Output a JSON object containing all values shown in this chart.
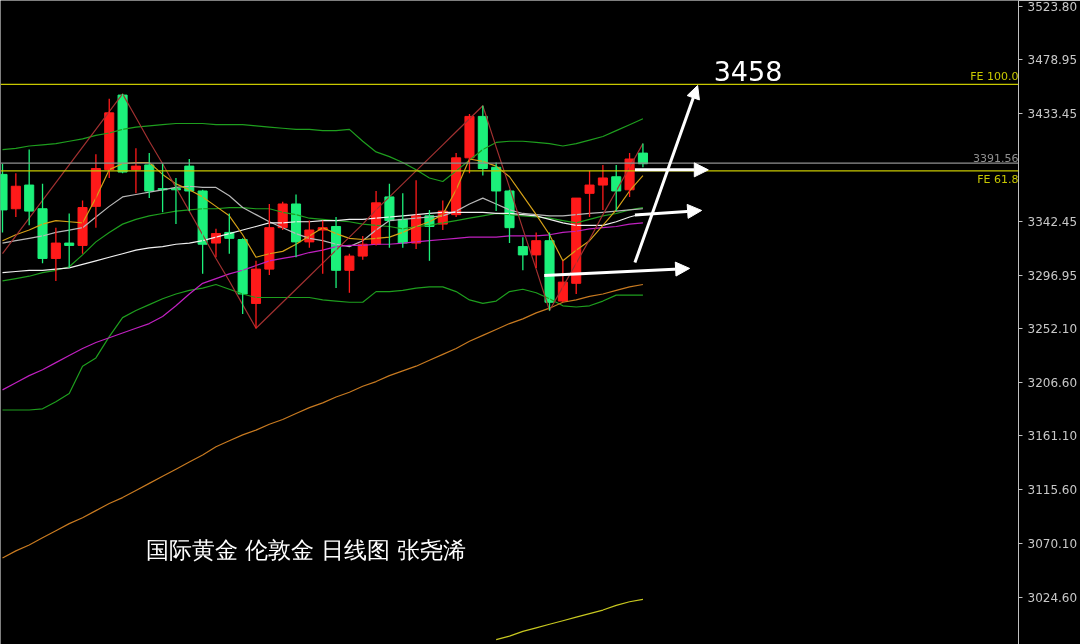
{
  "chart_data": {
    "type": "candlestick",
    "categories": [
      null,
      null,
      null,
      null,
      null,
      null,
      null,
      null,
      null,
      null,
      null,
      null,
      null,
      null,
      null,
      null,
      null,
      null,
      null,
      null,
      null,
      null,
      null,
      null,
      null,
      null,
      null,
      null,
      null,
      null,
      null,
      null,
      null,
      null,
      null,
      null,
      null,
      null,
      null,
      null,
      null,
      null,
      null,
      null,
      null,
      null,
      null,
      null,
      null,
      null,
      null,
      null,
      null,
      null,
      null,
      null,
      null,
      null,
      null,
      null,
      null,
      null,
      null,
      null,
      null,
      null,
      null,
      null,
      null,
      null,
      null,
      null,
      null,
      null,
      null,
      null,
      null
    ],
    "ohlc": [
      [
        3382,
        3391,
        3333,
        3352
      ],
      [
        3353,
        3383,
        3346,
        3372
      ],
      [
        3373,
        3403,
        3339,
        3351
      ],
      [
        3353,
        3374,
        3307,
        3311
      ],
      [
        3311,
        3337,
        3292,
        3324
      ],
      [
        3324,
        3349,
        3303,
        3322
      ],
      [
        3322,
        3360,
        3315,
        3354
      ],
      [
        3355,
        3399,
        3337,
        3387
      ],
      [
        3386,
        3446,
        3379,
        3434
      ],
      [
        3449,
        3450,
        3383,
        3384
      ],
      [
        3386,
        3404,
        3366,
        3389
      ],
      [
        3390,
        3400,
        3362,
        3368
      ],
      [
        3370,
        3391,
        3350,
        3369
      ],
      [
        3370,
        3379,
        3340,
        3369
      ],
      [
        3389,
        3395,
        3351,
        3368
      ],
      [
        3368,
        3369,
        3298,
        3323
      ],
      [
        3324,
        3336,
        3312,
        3332
      ],
      [
        3333,
        3349,
        3315,
        3328
      ],
      [
        3327,
        3328,
        3264,
        3281
      ],
      [
        3273,
        3309,
        3252,
        3302
      ],
      [
        3302,
        3357,
        3297,
        3337
      ],
      [
        3337,
        3359,
        3335,
        3357
      ],
      [
        3357,
        3365,
        3312,
        3325
      ],
      [
        3325,
        3343,
        3320,
        3335
      ],
      [
        3335,
        3343,
        3298,
        3337
      ],
      [
        3338,
        3346,
        3286,
        3301
      ],
      [
        3301,
        3315,
        3282,
        3313
      ],
      [
        3313,
        3330,
        3310,
        3323
      ],
      [
        3323,
        3368,
        3322,
        3358
      ],
      [
        3363,
        3374,
        3320,
        3343
      ],
      [
        3344,
        3366,
        3320,
        3324
      ],
      [
        3324,
        3377,
        3319,
        3347
      ],
      [
        3347,
        3352,
        3309,
        3338
      ],
      [
        3340,
        3360,
        3335,
        3351
      ],
      [
        3348,
        3400,
        3346,
        3396
      ],
      [
        3396,
        3433,
        3383,
        3431
      ],
      [
        3431,
        3440,
        3381,
        3387
      ],
      [
        3388,
        3392,
        3351,
        3368
      ],
      [
        3368,
        3369,
        3324,
        3337
      ],
      [
        3321,
        3329,
        3301,
        3314
      ],
      [
        3314,
        3333,
        3303,
        3326
      ],
      [
        3326,
        3333,
        3267,
        3274
      ],
      [
        3275,
        3309,
        3274,
        3291
      ],
      [
        3290,
        3362,
        3281,
        3362
      ],
      [
        3366,
        3385,
        3346,
        3373
      ],
      [
        3373,
        3390,
        3352,
        3379
      ],
      [
        3380,
        3390,
        3351,
        3368
      ],
      [
        3369,
        3400,
        3363,
        3395
      ],
      [
        3400,
        3408,
        3388,
        3391
      ],
      null,
      null,
      null,
      null,
      null,
      null,
      null,
      null,
      null,
      null,
      null,
      null,
      null,
      null,
      null,
      null,
      null,
      null,
      null,
      null,
      null,
      null,
      null,
      null,
      null,
      null,
      null,
      null
    ],
    "colors": [
      "#1cf07a",
      "#ff1a1a",
      "#1cf07a",
      "#1cf07a",
      "#ff1a1a",
      "#1cf07a",
      "#ff1a1a",
      "#ff1a1a",
      "#ff1a1a",
      "#1cf07a",
      "#ff1a1a",
      "#1cf07a",
      "#1cf07a",
      "#1cf07a",
      "#1cf07a",
      "#1cf07a",
      "#ff1a1a",
      "#1cf07a",
      "#1cf07a",
      "#ff1a1a",
      "#ff1a1a",
      "#ff1a1a",
      "#1cf07a",
      "#ff1a1a",
      "#ff1a1a",
      "#1cf07a",
      "#ff1a1a",
      "#ff1a1a",
      "#ff1a1a",
      "#1cf07a",
      "#1cf07a",
      "#ff1a1a",
      "#1cf07a",
      "#ff1a1a",
      "#ff1a1a",
      "#ff1a1a",
      "#1cf07a",
      "#1cf07a",
      "#1cf07a",
      "#1cf07a",
      "#ff1a1a",
      "#1cf07a",
      "#ff1a1a",
      "#ff1a1a",
      "#ff1a1a",
      "#ff1a1a",
      "#1cf07a",
      "#ff1a1a",
      "#1cf07a",
      null,
      null,
      null,
      null,
      null,
      null,
      null,
      null,
      null,
      null,
      null,
      null,
      null,
      null,
      null,
      null,
      null,
      null,
      null,
      null,
      null,
      null,
      null,
      null,
      null,
      null,
      null,
      null
    ],
    "series": [
      {
        "type": "line",
        "color": "#1e9e1e",
        "values": [
          3403,
          3404,
          3406,
          3407,
          3408,
          3410,
          3412,
          3415,
          3417,
          3420,
          3422,
          3423,
          3424,
          3425,
          3425,
          3425,
          3424,
          3424,
          3424,
          3423,
          3422,
          3421,
          3420,
          3420,
          3419,
          3419,
          3420,
          3410,
          3401,
          3397,
          3392,
          3386,
          3379,
          3376,
          3385,
          3394,
          3403,
          3409,
          3410,
          3410,
          3409,
          3408,
          3406,
          3408,
          3411,
          3414,
          3419,
          3424,
          3429,
          null,
          null,
          null,
          null,
          null,
          null,
          null,
          null,
          null,
          null,
          null,
          null,
          null,
          null,
          null,
          null,
          null,
          null,
          null,
          null,
          null,
          null,
          null,
          null,
          null,
          null,
          null,
          null
        ]
      },
      {
        "type": "line",
        "color": "#1e9e1e",
        "values": [
          3292,
          3294,
          3296,
          3299,
          3301,
          3304,
          3314,
          3325,
          3333,
          3340,
          3344,
          3347,
          3349,
          3351,
          3352,
          3353,
          3353,
          3354,
          3354,
          3353,
          3353,
          3350,
          3348,
          3345,
          3344,
          3343,
          3342,
          3340,
          3339,
          3338,
          3336,
          3338,
          3339,
          3341,
          3343,
          3345,
          3347,
          3349,
          3348,
          3347,
          3346,
          3345,
          3343,
          3341,
          3344,
          3347,
          3349,
          3352,
          3354,
          null,
          null,
          null,
          null,
          null,
          null,
          null,
          null,
          null,
          null,
          null,
          null,
          null,
          null,
          null,
          null,
          null,
          null,
          null,
          null,
          null,
          null,
          null,
          null,
          null,
          null,
          null,
          null
        ]
      },
      {
        "type": "line",
        "color": "#1e9e1e",
        "values": [
          3183,
          3183,
          3183,
          3184,
          3190,
          3197,
          3220,
          3227,
          3245,
          3261,
          3267,
          3272,
          3277,
          3281,
          3284,
          3286,
          3289,
          3285,
          3281,
          3278,
          3278,
          3278,
          3278,
          3278,
          3276,
          3275,
          3274,
          3274,
          3283,
          3283,
          3284,
          3286,
          3287,
          3287,
          3283,
          3276,
          3273,
          3275,
          3283,
          3285,
          3282,
          3277,
          3271,
          3270,
          3271,
          3275,
          3280,
          3280,
          3280,
          null,
          null,
          null,
          null,
          null,
          null,
          null,
          null,
          null,
          null,
          null,
          null,
          null,
          null,
          null,
          null,
          null,
          null,
          null,
          null,
          null,
          null,
          null,
          null,
          null,
          null,
          null,
          null
        ]
      },
      {
        "type": "line",
        "color": "#b8b8b8",
        "values": [
          3324,
          3326,
          3328,
          3330,
          3333,
          3335,
          3337,
          3346,
          3355,
          3363,
          3365,
          3367,
          3369,
          3371,
          3372,
          3371,
          3371,
          3364,
          3354,
          3348,
          3342,
          3337,
          3332,
          3328,
          3326,
          3323,
          3321,
          3326,
          3335,
          3343,
          3344,
          3345,
          3346,
          3347,
          3351,
          3357,
          3362,
          3357,
          3352,
          3349,
          3348,
          3347,
          3347,
          3348,
          3349,
          3350,
          3351,
          3352,
          3353,
          null,
          null,
          null,
          null,
          null,
          null,
          null,
          null,
          null,
          null,
          null,
          null,
          null,
          null,
          null,
          null,
          null,
          null,
          null,
          null,
          null,
          null,
          null,
          null,
          null,
          null,
          null,
          null
        ]
      },
      {
        "type": "line",
        "color": "#f0f0f0",
        "values": [
          3299,
          3300,
          3301,
          3301,
          3302,
          3303,
          3306,
          3309,
          3312,
          3315,
          3318,
          3320,
          3321,
          3323,
          3324,
          3326,
          3329,
          3332,
          3335,
          3338,
          3341,
          3341,
          3342,
          3342,
          3343,
          3343,
          3344,
          3344,
          3345,
          3346,
          3347,
          3348,
          3349,
          3350,
          3350,
          3350,
          3350,
          3349,
          3349,
          3348,
          3347,
          3344,
          3341,
          3339,
          3339,
          3339,
          3342,
          3346,
          3349,
          null,
          null,
          null,
          null,
          null,
          null,
          null,
          null,
          null,
          null,
          null,
          null,
          null,
          null,
          null,
          null,
          null,
          null,
          null,
          null,
          null,
          null,
          null,
          null,
          null,
          null,
          null,
          null
        ]
      },
      {
        "type": "line",
        "color": "#c020c0",
        "values": [
          3200,
          3206,
          3212,
          3217,
          3223,
          3229,
          3235,
          3240,
          3244,
          3248,
          3252,
          3256,
          3262,
          3271,
          3281,
          3290,
          3294,
          3298,
          3301,
          3305,
          3309,
          3311,
          3313,
          3316,
          3318,
          3321,
          3322,
          3322,
          3323,
          3323,
          3324,
          3325,
          3326,
          3327,
          3328,
          3329,
          3329,
          3329,
          3330,
          3330,
          3330,
          3331,
          3333,
          3334,
          3336,
          3337,
          3338,
          3340,
          3341,
          null,
          null,
          null,
          null,
          null,
          null,
          null,
          null,
          null,
          null,
          null,
          null,
          null,
          null,
          null,
          null,
          null,
          null,
          null,
          null,
          null,
          null,
          null,
          null,
          null,
          null,
          null,
          null
        ]
      },
      {
        "type": "line",
        "color": "#d4a017",
        "values": [
          3326,
          3331,
          3335,
          3340,
          3343,
          3342,
          3341,
          3362,
          3386,
          3391,
          3392,
          3392,
          3382,
          3374,
          3369,
          3363,
          3355,
          3347,
          3331,
          3312,
          3315,
          3317,
          3323,
          3330,
          3337,
          3332,
          3328,
          3327,
          3328,
          3329,
          3333,
          3338,
          3342,
          3348,
          3369,
          3395,
          3393,
          3389,
          3380,
          3364,
          3348,
          3331,
          3309,
          3318,
          3326,
          3339,
          3352,
          3368,
          3381,
          null,
          null,
          null,
          null,
          null,
          null,
          null,
          null,
          null,
          null,
          null,
          null,
          null,
          null,
          null,
          null,
          null,
          null,
          null,
          null,
          null,
          null,
          null,
          null,
          null,
          null,
          null,
          null
        ]
      },
      {
        "type": "line",
        "color": "#c87a20",
        "values": [
          3058,
          3064,
          3069,
          3075,
          3081,
          3087,
          3092,
          3098,
          3104,
          3109,
          3115,
          3121,
          3127,
          3133,
          3139,
          3145,
          3152,
          3157,
          3162,
          3166,
          3171,
          3175,
          3180,
          3185,
          3189,
          3194,
          3198,
          3203,
          3207,
          3212,
          3216,
          3220,
          3225,
          3230,
          3235,
          3241,
          3246,
          3251,
          3256,
          3260,
          3265,
          3269,
          3274,
          3276,
          3279,
          3281,
          3284,
          3287,
          3289,
          null,
          null,
          null,
          null,
          null,
          null,
          null,
          null,
          null,
          null,
          null,
          null,
          null,
          null,
          null,
          null,
          null,
          null,
          null,
          null,
          null,
          null,
          null,
          null,
          null,
          null,
          null,
          null
        ]
      },
      {
        "type": "line",
        "color": "#c8c820",
        "values": [
          null,
          null,
          null,
          null,
          null,
          null,
          null,
          null,
          null,
          null,
          null,
          null,
          null,
          null,
          null,
          null,
          null,
          null,
          null,
          null,
          null,
          null,
          null,
          null,
          null,
          null,
          null,
          null,
          null,
          null,
          null,
          null,
          null,
          null,
          null,
          null,
          null,
          2989,
          2992,
          2996,
          2999,
          3002,
          3005,
          3008,
          3011,
          3014,
          3018,
          3021,
          3023,
          null,
          null,
          null,
          null,
          null,
          null,
          null,
          null,
          null,
          null,
          null,
          null,
          null,
          null,
          null,
          null,
          null,
          null,
          null,
          null,
          null,
          null,
          null,
          null,
          null,
          null,
          null,
          null
        ]
      },
      {
        "type": "line",
        "color": "#a03030",
        "values": [
          3315,
          3330,
          3345,
          3360,
          3375,
          3390,
          3405,
          3420,
          3435,
          3450,
          3430,
          3410,
          3391,
          3371,
          3351,
          3331,
          3311,
          3292,
          3272,
          3252,
          3263,
          3274,
          3285,
          3296,
          3307,
          3318,
          3329,
          3340,
          3352,
          3363,
          3374,
          3385,
          3396,
          3407,
          3418,
          3429,
          3440,
          3405,
          3371,
          3336,
          3302,
          3267,
          3287,
          3307,
          3327,
          3348,
          3368,
          3388,
          3408,
          null,
          null,
          null,
          null,
          null,
          null,
          null,
          null,
          null,
          null,
          null,
          null,
          null,
          null,
          null,
          null,
          null,
          null,
          null,
          null,
          null,
          null,
          null,
          null,
          null,
          null,
          null,
          null
        ]
      }
    ],
    "ylim": [
      2984.9,
      3528.9
    ],
    "yticks": [
      {
        "value": 3523.8,
        "label": "3523.80"
      },
      {
        "value": 3478.95,
        "label": "3478.95"
      },
      {
        "value": 3433.45,
        "label": "3433.45"
      },
      {
        "value": 3342.45,
        "label": "3342.45"
      },
      {
        "value": 3296.95,
        "label": "3296.95"
      },
      {
        "value": 3252.1,
        "label": "3252.10"
      },
      {
        "value": 3206.6,
        "label": "3206.60"
      },
      {
        "value": 3161.1,
        "label": "3161.10"
      },
      {
        "value": 3115.6,
        "label": "3115.60"
      },
      {
        "value": 3070.1,
        "label": "3070.10"
      },
      {
        "value": 3024.6,
        "label": "3024.60"
      }
    ],
    "tick_labels": "y",
    "ref_lines": [
      {
        "axis": "y",
        "value": 3391.56,
        "label": "3391.56",
        "color": "#909090"
      },
      {
        "axis": "y",
        "value": 3458,
        "label": "FE 100.0",
        "color": "#c8c800"
      },
      {
        "axis": "y",
        "value": 3385,
        "label": "FE 61.8",
        "color": "#c8c800"
      }
    ],
    "annotations": [
      {
        "text": "3458",
        "y": 3458
      },
      "国际黄金 伦敦金 日线图 张尧浠"
    ]
  }
}
